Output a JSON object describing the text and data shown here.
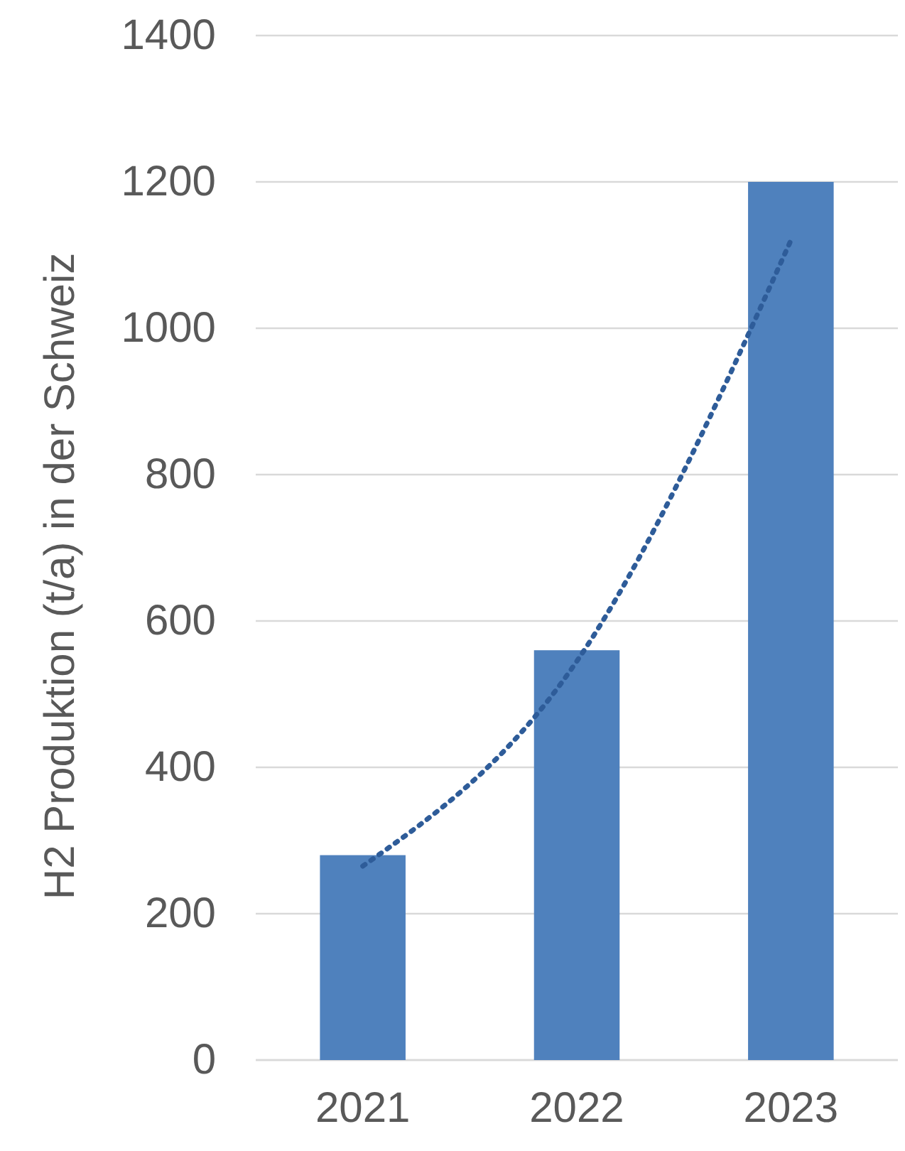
{
  "chart_data": {
    "type": "bar",
    "categories": [
      "2021",
      "2022",
      "2023"
    ],
    "ylabel": "H2 Produktion (t/a) in der Schweiz",
    "series": [
      {
        "color": "#4f81bd",
        "values": [
          280,
          560,
          1200
        ]
      },
      {
        "type": "line",
        "color": "#2e5c99",
        "line_style": "dotted",
        "marker": "none",
        "values": [
          265,
          545,
          1120
        ]
      }
    ],
    "ylim": [
      0,
      1400
    ],
    "yticks": [
      0,
      200,
      400,
      600,
      800,
      1000,
      1200,
      1400
    ],
    "grid": "y"
  }
}
